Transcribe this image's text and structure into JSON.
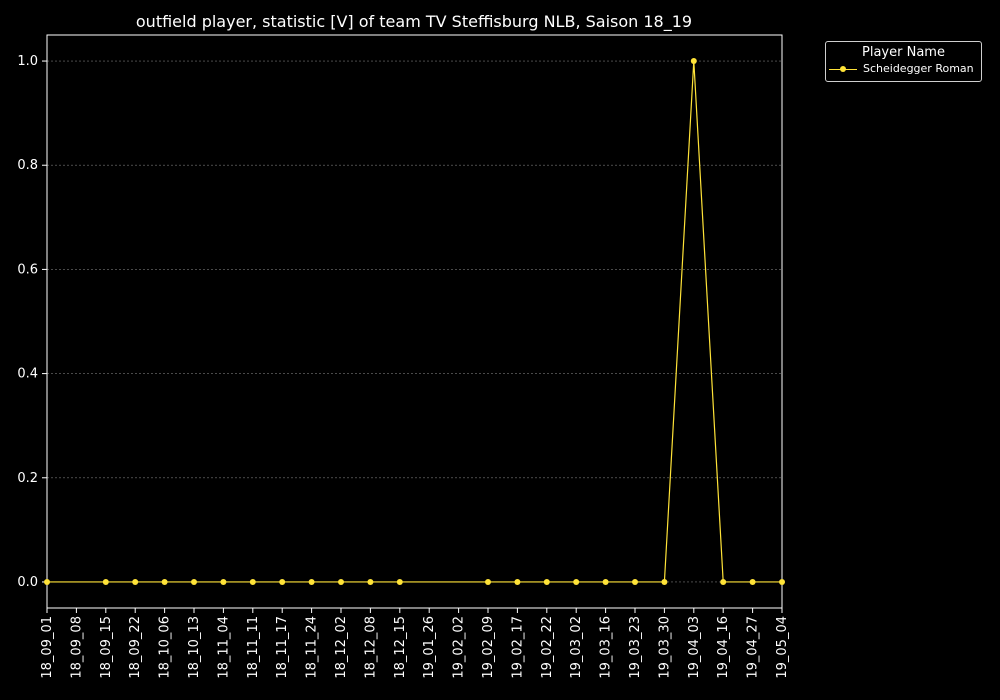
{
  "chart_data": {
    "type": "line",
    "title": "outfield player, statistic [V] of team TV Steffisburg NLB, Saison 18_19",
    "xlabel": "",
    "ylabel": "",
    "categories": [
      "18_09_01",
      "18_09_08",
      "18_09_15",
      "18_09_22",
      "18_10_06",
      "18_10_13",
      "18_11_04",
      "18_11_11",
      "18_11_17",
      "18_11_24",
      "18_12_02",
      "18_12_08",
      "18_12_15",
      "19_01_26",
      "19_02_02",
      "19_02_09",
      "19_02_17",
      "19_02_22",
      "19_03_02",
      "19_03_16",
      "19_03_23",
      "19_03_30",
      "19_04_03",
      "19_04_16",
      "19_04_27",
      "19_05_04"
    ],
    "ylim": [
      -0.05,
      1.05
    ],
    "yticks": [
      "0.0",
      "0.2",
      "0.4",
      "0.6",
      "0.8",
      "1.0"
    ],
    "grid": true,
    "legend_title": "Player Name",
    "legend_position": "outside-top-right",
    "series": [
      {
        "name": "Scheidegger Roman",
        "color": "#ffe338",
        "values": [
          0,
          null,
          0,
          0,
          0,
          0,
          0,
          0,
          0,
          0,
          0,
          0,
          0,
          null,
          null,
          0,
          0,
          0,
          0,
          0,
          0,
          0,
          1,
          0,
          0,
          0
        ]
      }
    ]
  }
}
